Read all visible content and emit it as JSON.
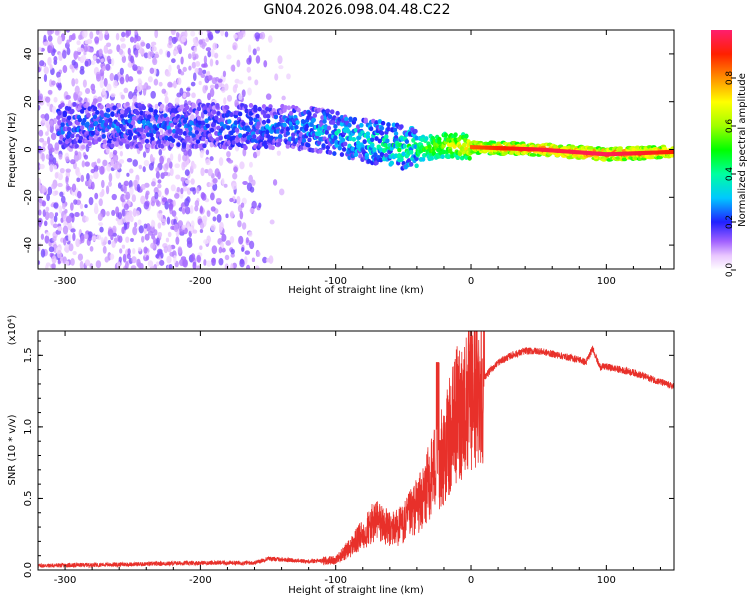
{
  "title": "GN04.2026.098.04.48.C22",
  "chart_data": [
    {
      "type": "heatmap",
      "xlabel": "Height of straight line (km)",
      "ylabel": "Frequency (Hz)",
      "xlim": [
        -320,
        150
      ],
      "ylim": [
        -50,
        50
      ],
      "xticks": [
        -300,
        -200,
        -100,
        0,
        100
      ],
      "yticks": [
        -40,
        -20,
        0,
        20,
        40
      ],
      "colorbar": {
        "label": "Normalized spectral amplitude",
        "range": [
          0,
          1
        ],
        "ticks": [
          "0.0",
          "0.2",
          "0.4",
          "0.6",
          "0.8"
        ],
        "tick_values": [
          0.0,
          0.2,
          0.4,
          0.6,
          0.8
        ]
      },
      "ridge": {
        "description_points": [
          {
            "x": -260,
            "y": 10,
            "amp": 0.3
          },
          {
            "x": -200,
            "y": 10,
            "amp": 0.3
          },
          {
            "x": -120,
            "y": 9,
            "amp": 0.35
          },
          {
            "x": -80,
            "y": 4,
            "amp": 0.45
          },
          {
            "x": -40,
            "y": 0,
            "amp": 0.55
          },
          {
            "x": -20,
            "y": 2,
            "amp": 0.7
          },
          {
            "x": 0,
            "y": 1,
            "amp": 0.85
          },
          {
            "x": 50,
            "y": 0,
            "amp": 0.95
          },
          {
            "x": 100,
            "y": -2,
            "amp": 0.98
          },
          {
            "x": 150,
            "y": -1,
            "amp": 0.9
          }
        ]
      }
    },
    {
      "type": "line",
      "xlabel": "Height of straight line (km)",
      "ylabel": "SNR (10 * v/v)",
      "multiplier": "(x10⁴)",
      "xlim": [
        -320,
        150
      ],
      "ylim": [
        0,
        1.67
      ],
      "xticks": [
        -300,
        -200,
        -100,
        0,
        100
      ],
      "yticks": [
        0.0,
        0.5,
        1.0,
        1.5
      ],
      "ytick_labels": [
        "0.0",
        "0.5",
        "1.0",
        "1.5"
      ],
      "series": [
        {
          "name": "SNR",
          "color": "#e8302a",
          "x": [
            -320,
            -250,
            -200,
            -160,
            -150,
            -120,
            -100,
            -90,
            -80,
            -70,
            -60,
            -50,
            -40,
            -35,
            -30,
            -25,
            -20,
            -15,
            -10,
            0,
            10,
            20,
            30,
            40,
            50,
            60,
            70,
            80,
            85,
            90,
            95,
            100,
            120,
            150
          ],
          "y": [
            0.03,
            0.04,
            0.05,
            0.05,
            0.08,
            0.06,
            0.07,
            0.15,
            0.25,
            0.35,
            0.28,
            0.32,
            0.45,
            0.5,
            0.65,
            0.75,
            0.8,
            0.95,
            1.1,
            1.2,
            1.35,
            1.45,
            1.5,
            1.53,
            1.53,
            1.51,
            1.49,
            1.47,
            1.45,
            1.55,
            1.42,
            1.42,
            1.38,
            1.28
          ]
        }
      ]
    }
  ]
}
